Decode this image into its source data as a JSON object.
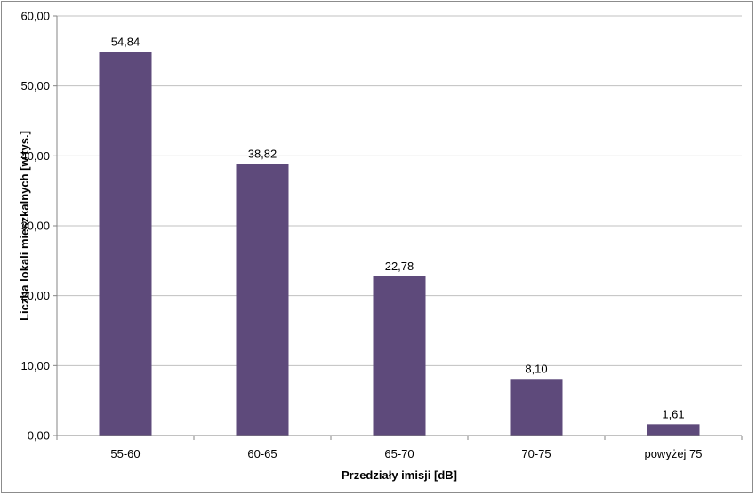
{
  "chart_data": {
    "type": "bar",
    "categories": [
      "55-60",
      "60-65",
      "65-70",
      "70-75",
      "powyżej 75"
    ],
    "values": [
      54.84,
      38.82,
      22.78,
      8.1,
      1.61
    ],
    "value_labels": [
      "54,84",
      "38,82",
      "22,78",
      "8,10",
      "1,61"
    ],
    "y_ticks": [
      "0,00",
      "10,00",
      "20,00",
      "30,00",
      "40,00",
      "50,00",
      "60,00"
    ],
    "y_tick_values": [
      0,
      10,
      20,
      30,
      40,
      50,
      60
    ],
    "xlabel": "Przedziały imisji [dB]",
    "ylabel": "Liczba lokali mieszkalnych [w tys.]",
    "ylim": [
      0,
      60
    ],
    "grid": true,
    "legend": "none",
    "bar_color": "#5e4a7b",
    "grid_color": "#c0c0c0"
  }
}
